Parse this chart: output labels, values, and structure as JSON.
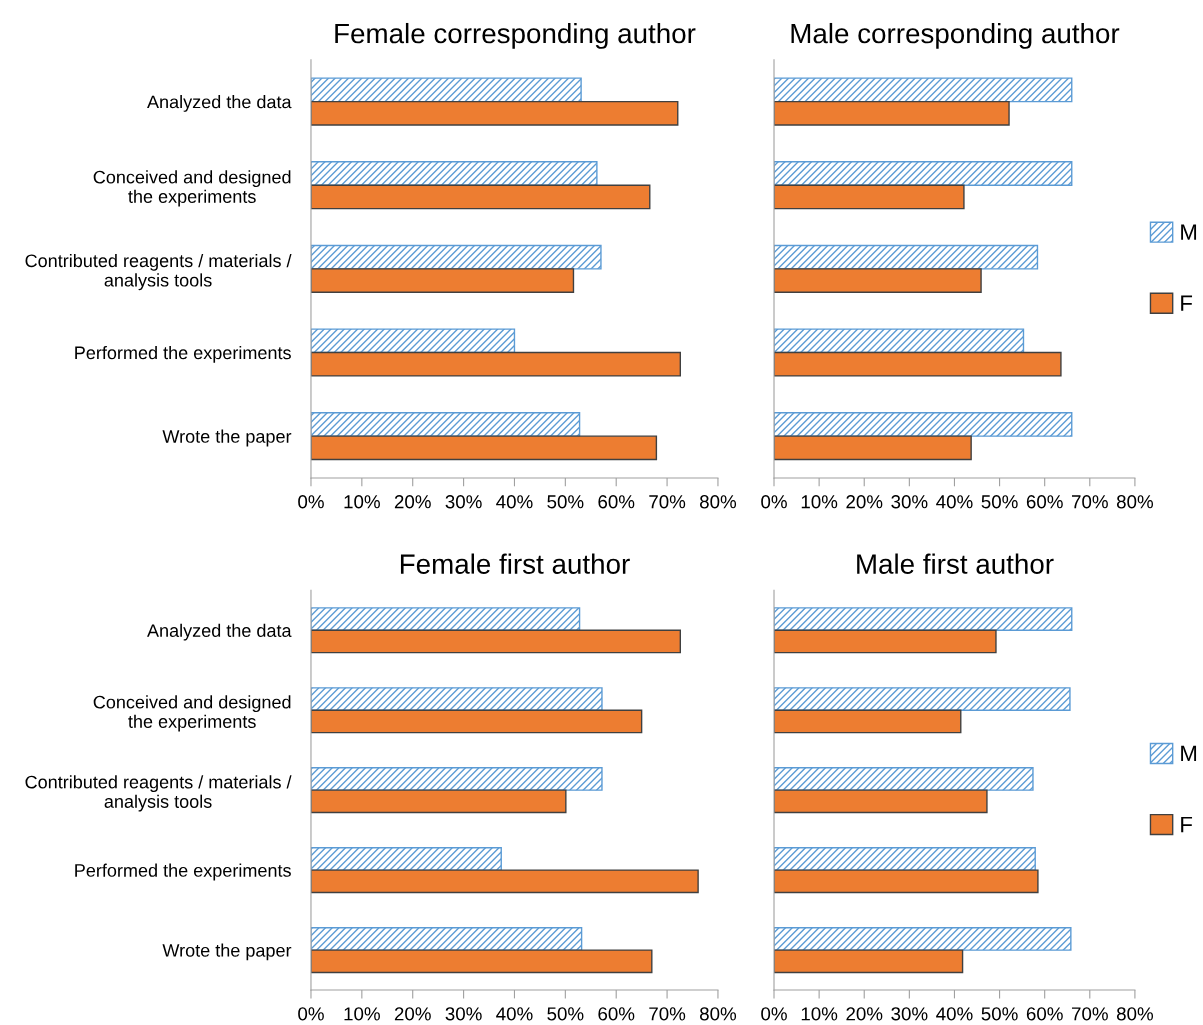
{
  "chart_data": [
    {
      "type": "bar",
      "orientation": "horizontal",
      "title": "Female corresponding author",
      "categories": [
        "Analyzed the data",
        "Conceived and designed\nthe experiments",
        "Contributed reagents / materials /\nanalysis tools",
        "Performed the experiments",
        "Wrote the paper"
      ],
      "series": [
        {
          "color": "#5b9bd5",
          "values": [
            53.1,
            56.2,
            57.0,
            40.0,
            52.8
          ]
        },
        {
          "color": "#ed7d31",
          "values": [
            72.1,
            66.6,
            51.6,
            72.6,
            67.9
          ]
        }
      ],
      "xlim": [
        0,
        80
      ],
      "xticks": [
        {
          "value": 0,
          "label": "0%"
        },
        {
          "value": 10,
          "label": "10%"
        },
        {
          "value": 20,
          "label": "20%"
        },
        {
          "value": 30,
          "label": "30%"
        },
        {
          "value": 40,
          "label": "40%"
        },
        {
          "value": 50,
          "label": "50%"
        },
        {
          "value": 60,
          "label": "60%"
        },
        {
          "value": 70,
          "label": "70%"
        },
        {
          "value": 80,
          "label": "80%"
        }
      ],
      "grid": false,
      "legend": false
    },
    {
      "type": "bar",
      "orientation": "horizontal",
      "title": "Male corresponding author",
      "categories": [
        null,
        null,
        null,
        null,
        null
      ],
      "series": [
        {
          "name": "M",
          "color": "#5b9bd5",
          "values": [
            66.0,
            66.0,
            58.4,
            55.3,
            66.0
          ]
        },
        {
          "name": "F",
          "color": "#ed7d31",
          "values": [
            52.1,
            42.1,
            45.9,
            63.6,
            43.7
          ]
        }
      ],
      "xlim": [
        0,
        80
      ],
      "xticks": [
        {
          "value": 0,
          "label": "0%"
        },
        {
          "value": 10,
          "label": "10%"
        },
        {
          "value": 20,
          "label": "20%"
        },
        {
          "value": 30,
          "label": "30%"
        },
        {
          "value": 40,
          "label": "40%"
        },
        {
          "value": 50,
          "label": "50%"
        },
        {
          "value": 60,
          "label": "60%"
        },
        {
          "value": 70,
          "label": "70%"
        },
        {
          "value": 80,
          "label": "80%"
        }
      ],
      "grid": false,
      "legend": "right",
      "tick_labels": "x"
    },
    {
      "type": "bar",
      "orientation": "horizontal",
      "title": "Female first author",
      "categories": [
        "Analyzed the data",
        "Conceived and designed\nthe experiments",
        "Contributed reagents / materials /\nanalysis tools",
        "Performed the experiments",
        "Wrote the paper"
      ],
      "series": [
        {
          "color": "#5b9bd5",
          "values": [
            52.8,
            57.2,
            57.2,
            37.4,
            53.2
          ]
        },
        {
          "color": "#ed7d31",
          "values": [
            72.6,
            65.0,
            50.1,
            76.1,
            67.0
          ]
        }
      ],
      "xlim": [
        0,
        80
      ],
      "xticks": [
        {
          "value": 0,
          "label": "0%"
        },
        {
          "value": 10,
          "label": "10%"
        },
        {
          "value": 20,
          "label": "20%"
        },
        {
          "value": 30,
          "label": "30%"
        },
        {
          "value": 40,
          "label": "40%"
        },
        {
          "value": 50,
          "label": "50%"
        },
        {
          "value": 60,
          "label": "60%"
        },
        {
          "value": 70,
          "label": "70%"
        },
        {
          "value": 80,
          "label": "80%"
        }
      ],
      "grid": false,
      "legend": false
    },
    {
      "type": "bar",
      "orientation": "horizontal",
      "title": "Male first author",
      "categories": [
        null,
        null,
        null,
        null,
        null
      ],
      "series": [
        {
          "name": "M",
          "color": "#5b9bd5",
          "values": [
            66.0,
            65.6,
            57.4,
            57.9,
            65.8
          ]
        },
        {
          "name": "F",
          "color": "#ed7d31",
          "values": [
            49.2,
            41.4,
            47.2,
            58.5,
            41.8
          ]
        }
      ],
      "xlim": [
        0,
        80
      ],
      "xticks": [
        {
          "value": 0,
          "label": "0%"
        },
        {
          "value": 10,
          "label": "10%"
        },
        {
          "value": 20,
          "label": "20%"
        },
        {
          "value": 30,
          "label": "30%"
        },
        {
          "value": 40,
          "label": "40%"
        },
        {
          "value": 50,
          "label": "50%"
        },
        {
          "value": 60,
          "label": "60%"
        },
        {
          "value": 70,
          "label": "70%"
        },
        {
          "value": 80,
          "label": "80%"
        }
      ],
      "grid": false,
      "legend": "right",
      "tick_labels": "x"
    }
  ]
}
